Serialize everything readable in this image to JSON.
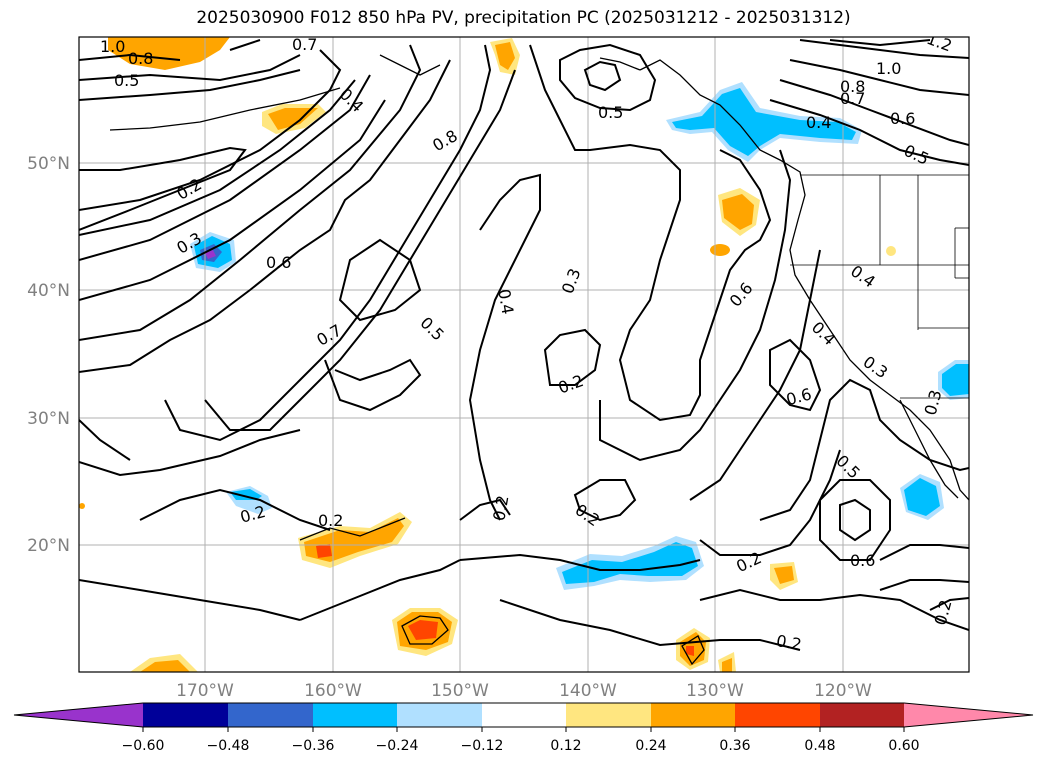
{
  "title": "2025030900 F012 850 hPa PV, precipitation PC (2025031212 - 2025031312)",
  "lat_labels": [
    "50°N",
    "40°N",
    "30°N",
    "20°N"
  ],
  "lon_labels": [
    "170°W",
    "160°W",
    "150°W",
    "140°W",
    "130°W",
    "120°W"
  ],
  "colorbar": {
    "colors": [
      "#9933cc",
      "#000099",
      "#3366cc",
      "#00bfff",
      "#b0e0ff",
      "#ffffff",
      "#ffe680",
      "#ffa500",
      "#ff4500",
      "#b22222",
      "#ff88aa"
    ],
    "tick_labels": [
      "−0.60",
      "−0.48",
      "−0.36",
      "−0.24",
      "−0.12",
      "0.12",
      "0.24",
      "0.36",
      "0.48",
      "0.60"
    ]
  },
  "contour_labels": [
    "1.0",
    "0.8",
    "0.5",
    "0.7",
    "0.4",
    "0.8",
    "0.5",
    "1.2",
    "1.0",
    "0.8",
    "0.7",
    "0.6",
    "0.4",
    "0.5",
    "0.2",
    "0.3",
    "0.6",
    "0.7",
    "0.5",
    "0.4",
    "0.3",
    "0.2",
    "0.6",
    "0.4",
    "0.4",
    "0.3",
    "0.6",
    "0.3",
    "0.5",
    "0.6",
    "0.2",
    "0.2",
    "0.2",
    "0.2",
    "0.2",
    "0.2",
    "0.2"
  ]
}
